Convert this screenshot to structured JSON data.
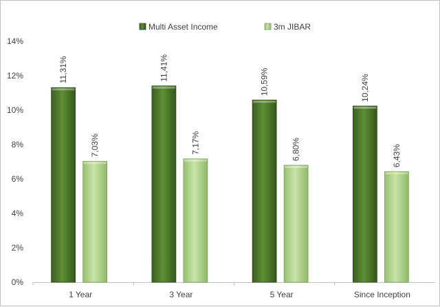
{
  "chart_data": {
    "type": "bar",
    "categories": [
      "1 Year",
      "3 Year",
      "5 Year",
      "Since Inception"
    ],
    "series": [
      {
        "name": "Multi Asset Income",
        "values": [
          11.31,
          11.41,
          10.59,
          10.24
        ],
        "labels": [
          "11,31%",
          "11,41%",
          "10,59%",
          "10,24%"
        ],
        "color": "#4e7a2a"
      },
      {
        "name": "3m JIBAR",
        "values": [
          7.03,
          7.17,
          6.8,
          6.43
        ],
        "labels": [
          "7,03%",
          "7,17%",
          "6,80%",
          "6,43%"
        ],
        "color": "#b3d68f"
      }
    ],
    "ylim": [
      0,
      14
    ],
    "yticks": [
      0,
      2,
      4,
      6,
      8,
      10,
      12,
      14
    ],
    "ytick_labels": [
      "0%",
      "2%",
      "4%",
      "6%",
      "8%",
      "10%",
      "12%",
      "14%"
    ],
    "grid": false,
    "legend": "top-center",
    "title": "",
    "xlabel": "",
    "ylabel": ""
  }
}
